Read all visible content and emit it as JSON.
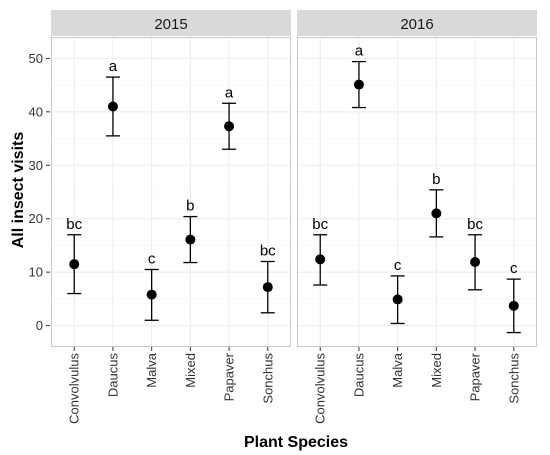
{
  "chart_data": {
    "type": "scatter",
    "xlabel": "Plant Species",
    "ylabel": "All insect visits",
    "categories": [
      "Convolvulus",
      "Daucus",
      "Malva",
      "Mixed",
      "Papaver",
      "Sonchus"
    ],
    "ylim": [
      -4,
      54
    ],
    "yticks": [
      0,
      10,
      20,
      30,
      40,
      50
    ],
    "grid": true,
    "panels": [
      {
        "label": "2015",
        "points": [
          {
            "category": "Convolvulus",
            "mean": 11.5,
            "lower": 6.0,
            "upper": 17.0,
            "group": "bc"
          },
          {
            "category": "Daucus",
            "mean": 41.0,
            "lower": 35.5,
            "upper": 46.5,
            "group": "a"
          },
          {
            "category": "Malva",
            "mean": 5.8,
            "lower": 1.0,
            "upper": 10.5,
            "group": "c"
          },
          {
            "category": "Mixed",
            "mean": 16.1,
            "lower": 11.8,
            "upper": 20.4,
            "group": "b"
          },
          {
            "category": "Papaver",
            "mean": 37.3,
            "lower": 33.0,
            "upper": 41.6,
            "group": "a"
          },
          {
            "category": "Sonchus",
            "mean": 7.2,
            "lower": 2.4,
            "upper": 12.0,
            "group": "bc"
          }
        ]
      },
      {
        "label": "2016",
        "points": [
          {
            "category": "Convolvulus",
            "mean": 12.4,
            "lower": 7.6,
            "upper": 17.0,
            "group": "bc"
          },
          {
            "category": "Daucus",
            "mean": 45.1,
            "lower": 40.8,
            "upper": 49.4,
            "group": "a"
          },
          {
            "category": "Malva",
            "mean": 4.9,
            "lower": 0.4,
            "upper": 9.3,
            "group": "c"
          },
          {
            "category": "Mixed",
            "mean": 21.0,
            "lower": 16.6,
            "upper": 25.4,
            "group": "b"
          },
          {
            "category": "Papaver",
            "mean": 11.9,
            "lower": 6.7,
            "upper": 17.0,
            "group": "bc"
          },
          {
            "category": "Sonchus",
            "mean": 3.7,
            "lower": -1.3,
            "upper": 8.7,
            "group": "c"
          }
        ]
      }
    ]
  },
  "colors": {
    "strip": "#d9d9d9",
    "grid_major": "#ebebeb",
    "panel_border": "#333333",
    "point": "#000000",
    "text": "#000000",
    "tick_text": "#333333"
  }
}
